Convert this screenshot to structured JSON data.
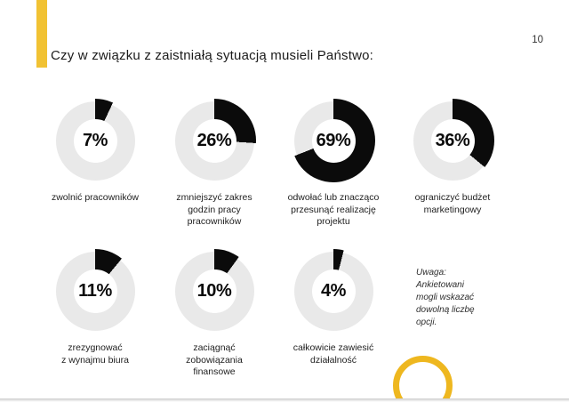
{
  "page": {
    "title": "Czy w związku z zaistniałą sytuacją musieli Państwo:",
    "page_number": "10"
  },
  "colors": {
    "accent_bar": "#F1C233",
    "accent_circle": "#EEB71F",
    "donut_track": "#E9E9E9",
    "donut_fill": "#0B0B0B",
    "text": "#1B1B1B"
  },
  "note": {
    "lines": [
      "Uwaga:",
      "Ankietowani",
      "mogli wskazać",
      "dowolną liczbę",
      "opcji."
    ]
  },
  "chart_data": {
    "type": "pie",
    "subtype": "donut_small_multiples",
    "title": "Czy w związku z zaistniałą sytuacją musieli Państwo:",
    "unit": "%",
    "arc_start": "top",
    "arc_direction": "clockwise",
    "note": "Uwaga: Ankietowani mogli wskazać dowolną liczbę opcji.",
    "series": [
      {
        "value": 7,
        "display": "7%",
        "label": "zwolnić pracowników",
        "label_lines": [
          "zwolnić pracowników"
        ]
      },
      {
        "value": 26,
        "display": "26%",
        "label": "zmniejszyć zakres godzin pracy pracowników",
        "label_lines": [
          "zmniejszyć zakres",
          "godzin pracy",
          "pracowników"
        ]
      },
      {
        "value": 69,
        "display": "69%",
        "label": "odwołać lub znacząco przesunąć realizację projektu",
        "label_lines": [
          "odwołać lub znacząco",
          "przesunąć realizację",
          "projektu"
        ]
      },
      {
        "value": 36,
        "display": "36%",
        "label": "ograniczyć budżet marketingowy",
        "label_lines": [
          "ograniczyć budżet",
          "marketingowy"
        ]
      },
      {
        "value": 11,
        "display": "11%",
        "label": "zrezygnować z wynajmu biura",
        "label_lines": [
          "zrezygnować",
          "z wynajmu biura"
        ]
      },
      {
        "value": 10,
        "display": "10%",
        "label": "zaciągnąć zobowiązania finansowe",
        "label_lines": [
          "zaciągnąć",
          "zobowiązania",
          "finansowe"
        ]
      },
      {
        "value": 4,
        "display": "4%",
        "label": "całkowicie zawiesić działalność",
        "label_lines": [
          "całkowicie zawiesić",
          "działalność"
        ]
      }
    ]
  }
}
